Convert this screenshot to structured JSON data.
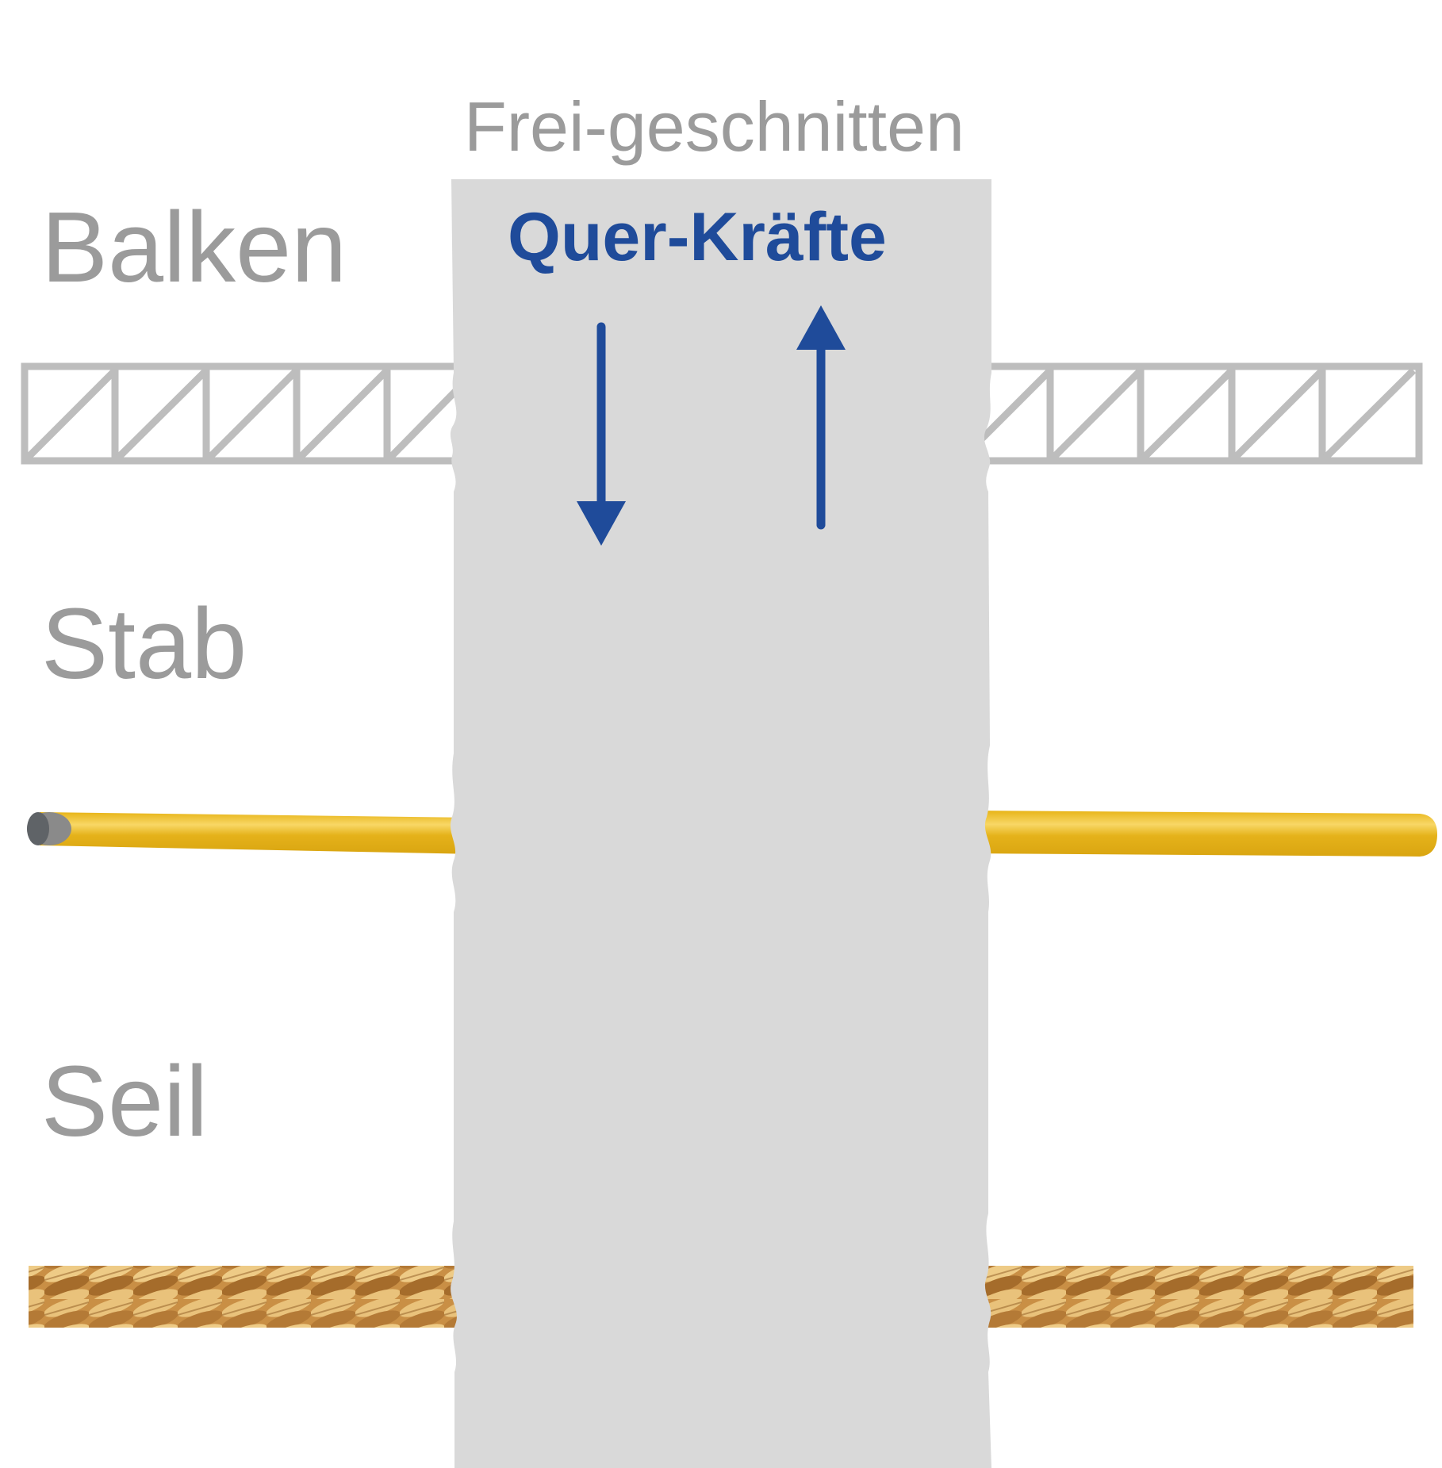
{
  "labels": {
    "top": "Frei-geschnitten",
    "forces": "Quer-Kräfte",
    "beam": "Balken",
    "rod": "Stab",
    "rope": "Seil"
  },
  "colors": {
    "gray_text": "#9b9b9b",
    "blue": "#1f4b9a",
    "panel": "#d9d9d9",
    "truss": "#bdbdbd",
    "rod_gold": "#e0ae14",
    "rod_highlight": "#f7d35c",
    "rope_light": "#e8c07a",
    "rope_dark": "#a8702e"
  },
  "icons": {
    "down": "arrow-down-icon",
    "up": "arrow-up-icon"
  }
}
